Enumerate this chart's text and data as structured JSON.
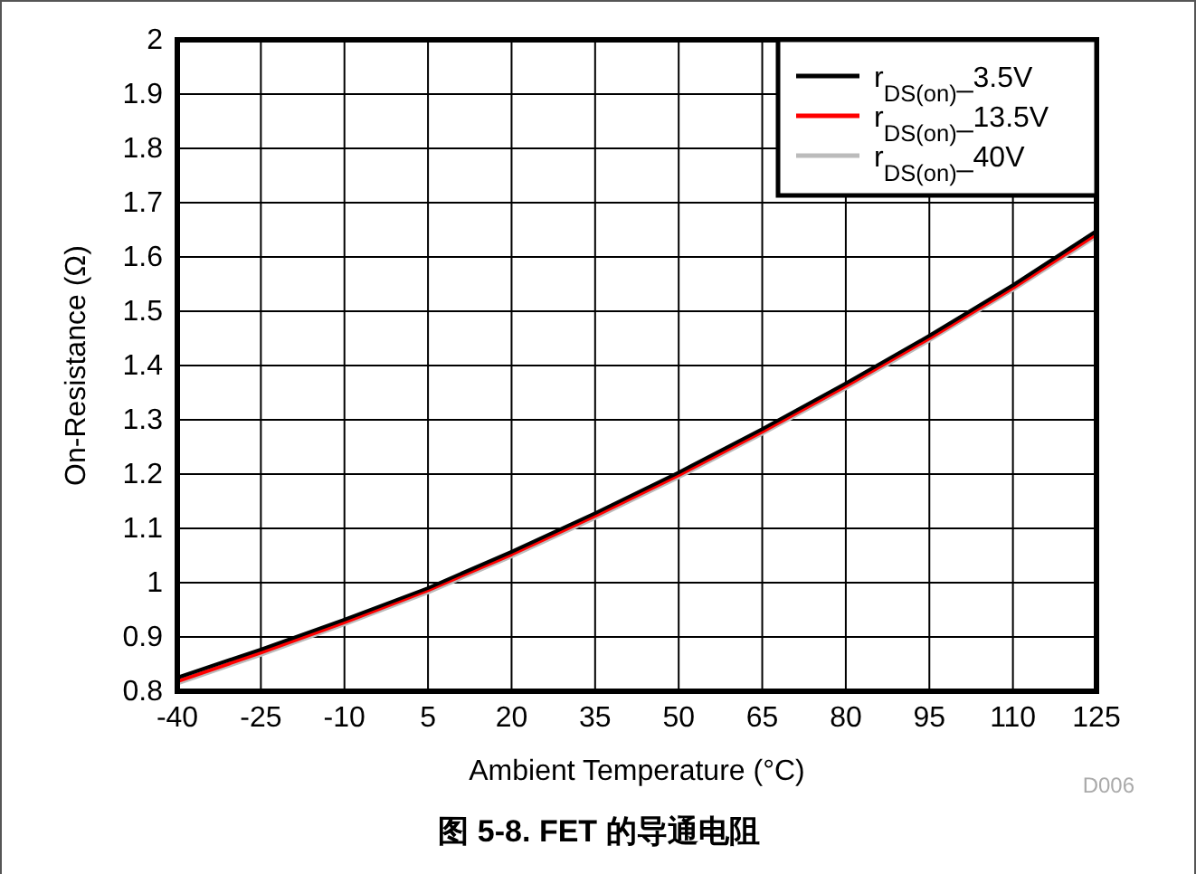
{
  "chart_data": {
    "type": "line",
    "title": "图 5-8. FET 的导通电阻",
    "xlabel": "Ambient Temperature (°C)",
    "ylabel": "On-Resistance (Ω)",
    "annotations": [
      "D006"
    ],
    "x": [
      -40,
      -25,
      -10,
      5,
      20,
      35,
      50,
      65,
      80,
      95,
      110,
      125
    ],
    "series": [
      {
        "name": "r$_{DS(on)}$_3.5V",
        "color": "#000000",
        "values": [
          0.825,
          0.877,
          0.932,
          0.99,
          1.057,
          1.128,
          1.203,
          1.283,
          1.367,
          1.455,
          1.548,
          1.648
        ]
      },
      {
        "name": "r$_{DS(on)}$_13.5V",
        "color": "#ff0000",
        "values": [
          0.818,
          0.871,
          0.927,
          0.986,
          1.052,
          1.123,
          1.198,
          1.278,
          1.362,
          1.45,
          1.543,
          1.642
        ]
      },
      {
        "name": "r$_{DS(on)}$_40V",
        "color": "#bbbbbb",
        "values": [
          0.814,
          0.867,
          0.923,
          0.982,
          1.048,
          1.119,
          1.194,
          1.274,
          1.358,
          1.446,
          1.539,
          1.638
        ]
      }
    ],
    "xlim": [
      -40,
      125
    ],
    "xticks": [
      -40,
      -25,
      -10,
      5,
      20,
      35,
      50,
      65,
      80,
      95,
      110,
      125
    ],
    "ylim": [
      0.8,
      2
    ],
    "yticks": [
      0.8,
      0.9,
      1,
      1.1,
      1.2,
      1.3,
      1.4,
      1.5,
      1.6,
      1.7,
      1.8,
      1.9,
      2
    ],
    "grid": true,
    "legend": "top right",
    "marker": "none",
    "line_style": "solid"
  }
}
